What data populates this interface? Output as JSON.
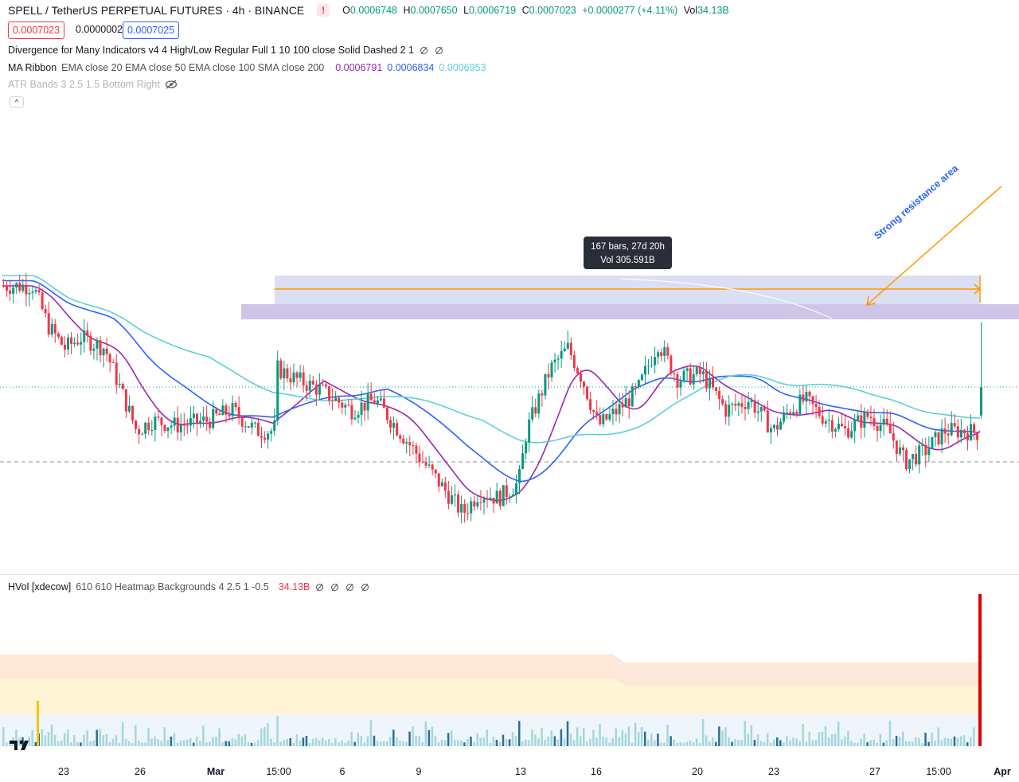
{
  "header": {
    "symbol_title": "SPELL / TetherUS PERPETUAL FUTURES · 4h · BINANCE",
    "ohlc": {
      "o_label": "O",
      "o_value": "0.0006748",
      "h_label": "H",
      "h_value": "0.0007650",
      "l_label": "L",
      "l_value": "0.0006719",
      "c_label": "C",
      "c_value": "0.0007023",
      "change": "+0.0000277 (+4.11%)",
      "vol_label": "Vol",
      "vol_value": "34.13B"
    },
    "sell_price": "0.0007023",
    "spread": "0.0000002",
    "buy_price": "0.0007025"
  },
  "indicators": {
    "divergence": "Divergence for Many Indicators v4 4 High/Low Regular Full 1 10 100 close Solid Dashed 2 1",
    "ma_ribbon_label": "MA Ribbon",
    "ma_ribbon_params": "EMA close 20 EMA close 50 EMA close 100 SMA close 200",
    "ma_values": [
      "0.0006791",
      "0.0006834",
      "0.0006953"
    ],
    "atr_bands": "ATR Bands 3 2.5 1.5 Bottom Right",
    "hvol_label": "HVol [xdecow]",
    "hvol_params": "610 610 Heatmap Backgrounds 4 2.5 1 -0.5",
    "hvol_value": "34.13B"
  },
  "annotations": {
    "measure_line1": "167 bars, 27d 20h",
    "measure_line2": "Vol 305.591B",
    "resistance_text": "Strong resistance area"
  },
  "date_axis": [
    "23",
    "26",
    "Mar",
    "15:00",
    "6",
    "9",
    "13",
    "16",
    "20",
    "23",
    "27",
    "15:00",
    "Apr"
  ],
  "colors": {
    "up": "#089981",
    "down": "#f23645",
    "ema20": "#9c27b0",
    "ema50": "#2962ff",
    "ema100": "#5dd0d8",
    "zone_fill": "#b39ddb",
    "zone_upper_fill": "#c5cae9",
    "arrow": "#ff9800"
  },
  "chart_data": {
    "type": "candlestick",
    "price_series": [
      {
        "name": "close_path",
        "values": [
          0.0008,
          0.00079,
          0.00076,
          0.00074,
          0.00075,
          0.00073,
          0.00072,
          0.00073,
          0.00072,
          0.000715,
          0.0007,
          0.00068,
          0.000675,
          0.00067,
          0.00066,
          0.00064,
          0.00062,
          0.000625,
          0.00064,
          0.000655,
          0.00069,
          0.0007,
          0.00068,
          0.00069,
          0.0007,
          0.00068,
          0.0007,
          0.000685,
          0.00069,
          0.000685,
          0.00068,
          0.00069,
          0.00067,
          0.000665,
          0.000675,
          0.000684
        ]
      }
    ],
    "ma_series": [
      {
        "name": "EMA 20",
        "last": 0.0006791
      },
      {
        "name": "EMA 50",
        "last": 0.0006834
      },
      {
        "name": "SMA 200",
        "last": 0.0006953
      }
    ],
    "last_close": 0.0007023,
    "last_high": 0.000765,
    "last_low": 0.0006719,
    "last_volume": "34.13B",
    "measure": {
      "bars": 167,
      "duration": "27d 20h",
      "volume": "305.591B"
    }
  }
}
